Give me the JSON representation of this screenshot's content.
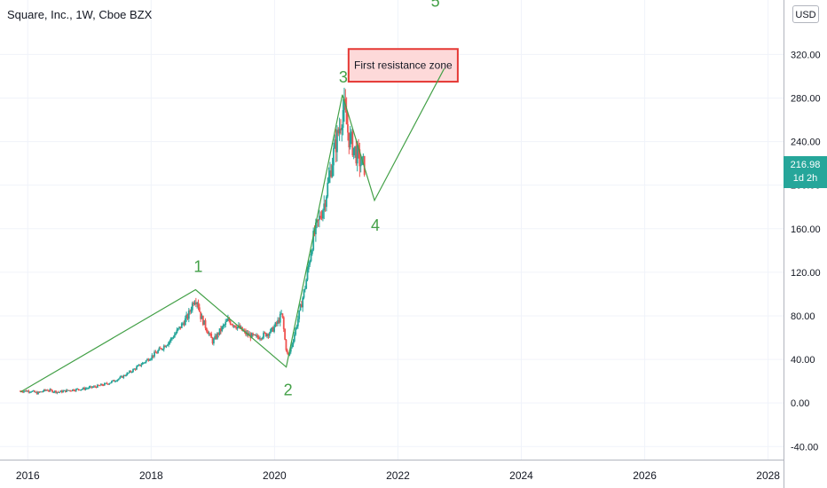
{
  "header": {
    "title": "Square, Inc., 1W, Cboe BZX",
    "currency": "USD"
  },
  "price_tag": {
    "price": "216.98",
    "countdown": "1d 2h"
  },
  "colors": {
    "up": "#26a69a",
    "down": "#ef5350",
    "wave_line": "#43a047",
    "zone_fill": "#fdd9d9",
    "zone_border": "#e53935",
    "grid": "#f0f3fa"
  },
  "chart_data": {
    "type": "candlestick",
    "title": "Square, Inc., 1W, Cboe BZX",
    "xlim": [
      2015.55,
      2028.25
    ],
    "ylim": [
      -52,
      370
    ],
    "y_ticks": [
      -40,
      0,
      40,
      80,
      120,
      160,
      200,
      240,
      280,
      320
    ],
    "y_tick_labels": [
      "-40.00",
      "0.00",
      "40.00",
      "80.00",
      "120.00",
      "160.00",
      "200.00",
      "240.00",
      "280.00",
      "320.00"
    ],
    "x_ticks": [
      2016,
      2018,
      2020,
      2022,
      2024,
      2026,
      2028
    ],
    "x_tick_labels": [
      "2016",
      "2018",
      "2020",
      "2022",
      "2024",
      "2026",
      "2028"
    ],
    "price_path": [
      [
        2015.88,
        11
      ],
      [
        2016.05,
        11
      ],
      [
        2016.15,
        9
      ],
      [
        2016.3,
        12
      ],
      [
        2016.5,
        10
      ],
      [
        2016.7,
        12
      ],
      [
        2016.9,
        13
      ],
      [
        2017.1,
        15
      ],
      [
        2017.3,
        18
      ],
      [
        2017.5,
        23
      ],
      [
        2017.7,
        30
      ],
      [
        2017.9,
        38
      ],
      [
        2018.1,
        47
      ],
      [
        2018.3,
        57
      ],
      [
        2018.45,
        68
      ],
      [
        2018.6,
        80
      ],
      [
        2018.7,
        96
      ],
      [
        2018.75,
        94
      ],
      [
        2018.8,
        80
      ],
      [
        2018.9,
        68
      ],
      [
        2019.0,
        56
      ],
      [
        2019.1,
        65
      ],
      [
        2019.25,
        76
      ],
      [
        2019.4,
        70
      ],
      [
        2019.55,
        63
      ],
      [
        2019.7,
        60
      ],
      [
        2019.85,
        63
      ],
      [
        2019.95,
        66
      ],
      [
        2020.05,
        74
      ],
      [
        2020.12,
        82
      ],
      [
        2020.18,
        52
      ],
      [
        2020.22,
        42
      ],
      [
        2020.3,
        58
      ],
      [
        2020.4,
        82
      ],
      [
        2020.5,
        108
      ],
      [
        2020.62,
        150
      ],
      [
        2020.72,
        168
      ],
      [
        2020.8,
        182
      ],
      [
        2020.88,
        205
      ],
      [
        2020.96,
        230
      ],
      [
        2021.04,
        250
      ],
      [
        2021.12,
        272
      ],
      [
        2021.2,
        245
      ],
      [
        2021.3,
        232
      ],
      [
        2021.4,
        220
      ],
      [
        2021.46,
        217
      ]
    ],
    "waves": [
      {
        "label": "1",
        "date": 2018.72,
        "price": 104
      },
      {
        "label": "2",
        "date": 2020.19,
        "price": 33
      },
      {
        "label": "3",
        "date": 2021.1,
        "price": 283
      },
      {
        "label": "4",
        "date": 2021.62,
        "price": 186
      },
      {
        "label": "5",
        "date": 2022.75,
        "price": 307
      }
    ],
    "wave_start": {
      "date": 2015.88,
      "price": 10
    },
    "resistance_zone": {
      "label": "First resistance zone",
      "x_range": [
        2021.2,
        2022.97
      ],
      "y_range": [
        295,
        325
      ]
    },
    "last_price": 216.98,
    "legend": "none",
    "grid": true
  }
}
